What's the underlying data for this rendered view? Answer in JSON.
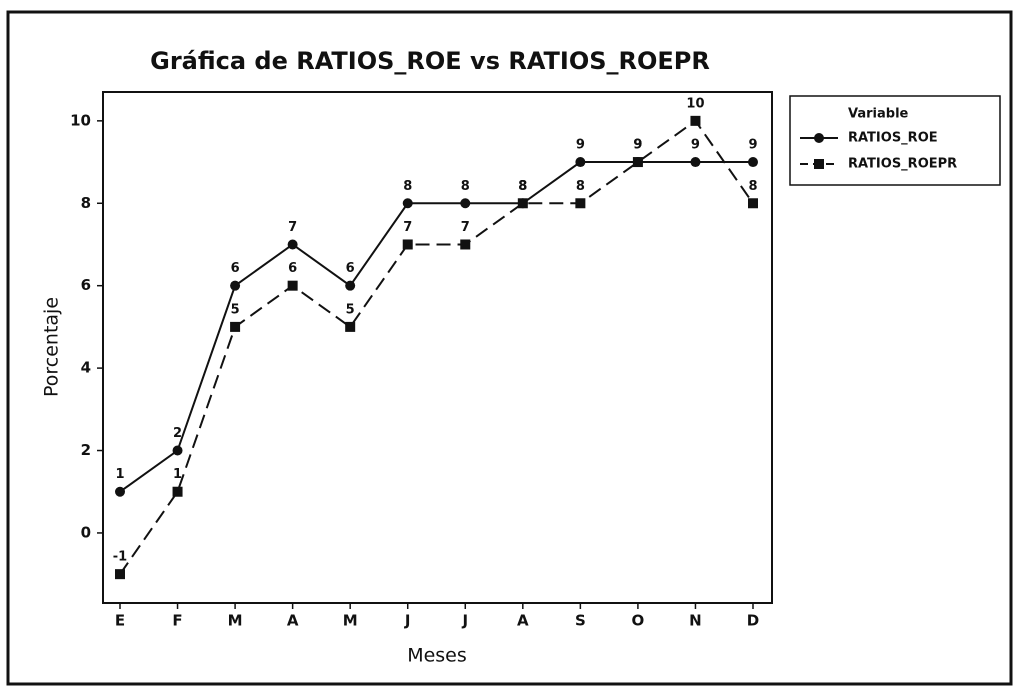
{
  "chart_data": {
    "type": "line",
    "title": "Gráfica de RATIOS_ROE vs RATIOS_ROEPR",
    "x_label": "Meses",
    "y_label": "Porcentaje",
    "legend_title": "Variable",
    "categories": [
      "E",
      "F",
      "M",
      "A",
      "M",
      "J",
      "J",
      "A",
      "S",
      "O",
      "N",
      "D"
    ],
    "series": [
      {
        "name": "RATIOS_ROE",
        "color": "#111111",
        "line_style": "solid",
        "marker": "circle",
        "values": [
          1,
          2,
          6,
          7,
          6,
          8,
          8,
          8,
          9,
          9,
          9,
          9
        ]
      },
      {
        "name": "RATIOS_ROEPR",
        "color": "#111111",
        "line_style": "dashed",
        "marker": "square",
        "values": [
          -1,
          1,
          5,
          6,
          5,
          7,
          7,
          8,
          8,
          9,
          10,
          8
        ]
      }
    ],
    "ylim": [
      -1.7,
      10.7
    ],
    "yticks": [
      0,
      2,
      4,
      6,
      8,
      10
    ],
    "grid": false,
    "legend": "right",
    "data_labels": true
  }
}
